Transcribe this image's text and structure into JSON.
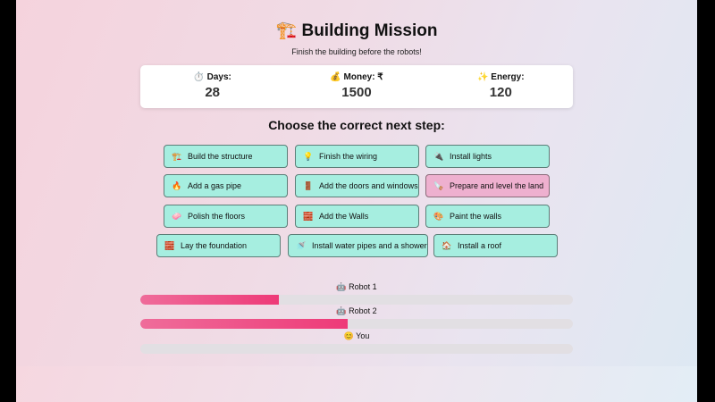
{
  "header": {
    "title": "🏗️ Building Mission",
    "subtitle": "Finish the building before the robots!"
  },
  "stats": [
    {
      "icon": "stopwatch-icon",
      "label": "⏱️ Days:",
      "value": "28"
    },
    {
      "icon": "money-bag-icon",
      "label": "💰 Money: ₹",
      "value": "1500"
    },
    {
      "icon": "sparkle-icon",
      "label": "✨ Energy:",
      "value": "120"
    }
  ],
  "prompt": "Choose the correct next step:",
  "options": [
    {
      "icon": "🏗️",
      "label": "Build the structure"
    },
    {
      "icon": "💡",
      "label": "Finish the wiring"
    },
    {
      "icon": "🔌",
      "label": "Install lights"
    },
    {
      "icon": "🔥",
      "label": "Add a gas pipe"
    },
    {
      "icon": "🚪",
      "label": "Add the doors and windows"
    },
    {
      "icon": "🪚",
      "label": "Prepare and level the land",
      "highlighted": true
    },
    {
      "icon": "🧼",
      "label": "Polish the floors"
    },
    {
      "icon": "🧱",
      "label": "Add the Walls"
    },
    {
      "icon": "🎨",
      "label": "Paint the walls"
    },
    {
      "icon": "🧱",
      "label": "Lay the foundation"
    },
    {
      "icon": "🚿",
      "label": "Install water pipes and a shower"
    },
    {
      "icon": "🏠",
      "label": "Install a roof"
    }
  ],
  "colors": {
    "option": "#a6eee0",
    "highlight": "#eeb0cf",
    "progress": "#ee3a78"
  },
  "race": [
    {
      "label": "🤖 Robot 1",
      "progress_pct": 32
    },
    {
      "label": "🤖 Robot 2",
      "progress_pct": 48
    },
    {
      "label": "😊 You",
      "progress_pct": 0
    }
  ]
}
